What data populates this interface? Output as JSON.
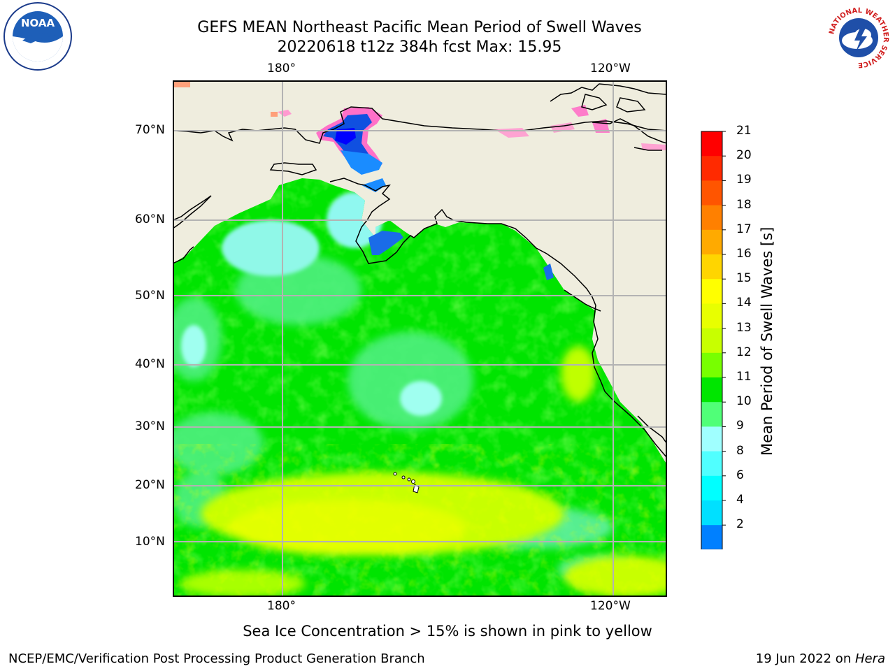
{
  "header": {
    "title_line1": "GEFS MEAN Northeast Pacific Mean Period of Swell Waves",
    "title_line2": "20220618 t12z 384h fcst   Max: 15.95"
  },
  "logos": {
    "left": "NOAA",
    "right_ring": "NATIONAL WEATHER SERVICE"
  },
  "map": {
    "lon_labels_top": [
      "180°",
      "120°W"
    ],
    "lon_labels_bottom": [
      "180°",
      "120°W"
    ],
    "lat_labels": [
      "70°N",
      "60°N",
      "50°N",
      "40°N",
      "30°N",
      "20°N",
      "10°N"
    ],
    "colors": {
      "land": "#efedde",
      "grid": "#b3b3b3"
    }
  },
  "colorbar": {
    "label": "Mean Period of Swell Waves [s]",
    "ticks": [
      "21",
      "20",
      "19",
      "18",
      "17",
      "16",
      "15",
      "14",
      "13",
      "12",
      "11",
      "10",
      "9",
      "8",
      "6",
      "4",
      "2"
    ],
    "colors_top_to_bottom": [
      "#ff0000",
      "#ff2a00",
      "#ff5500",
      "#ff8000",
      "#ffaa00",
      "#ffd500",
      "#ffff00",
      "#e8ff00",
      "#c8ff00",
      "#78ff00",
      "#00e600",
      "#50ff78",
      "#a0ffff",
      "#50ffff",
      "#00ffff",
      "#00e0ff",
      "#0080ff"
    ],
    "under_color": "#0000ff"
  },
  "notes": {
    "ice": "Sea Ice Concentration > 15% is shown in pink to yellow"
  },
  "footer": {
    "left": "NCEP/EMC/Verification Post Processing Product Generation Branch",
    "right_prefix": "19 Jun 2022 on ",
    "right_emph": "Hera"
  }
}
